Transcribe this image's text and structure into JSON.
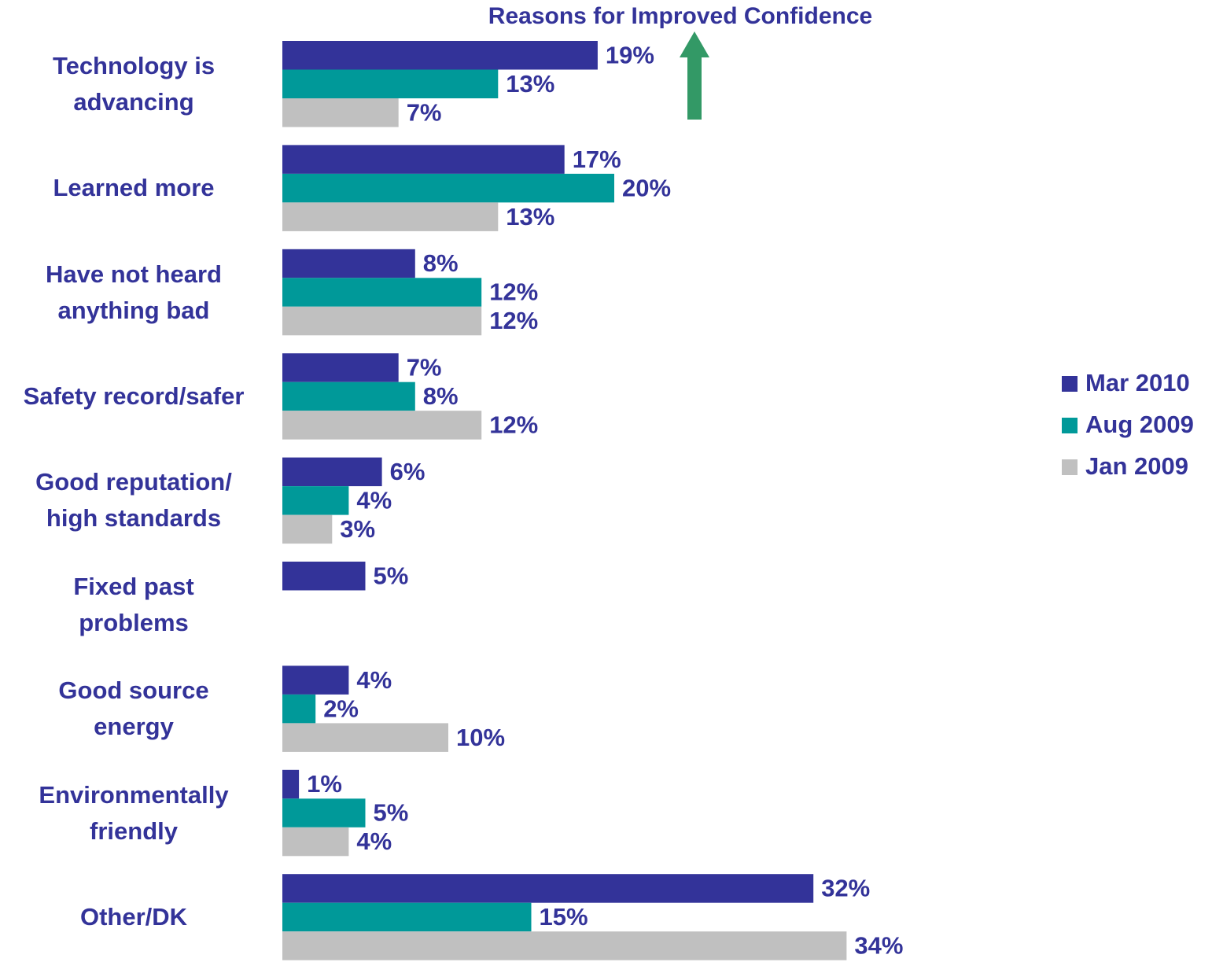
{
  "chart_data": {
    "type": "bar",
    "orientation": "horizontal",
    "title": "Reasons for Improved Confidence",
    "categories": [
      "Technology is\nadvancing",
      "Learned more",
      "Have not heard\nanything bad",
      "Safety record/safer",
      "Good reputation/\nhigh standards",
      "Fixed past\nproblems",
      "Good source\nenergy",
      "Environmentally\nfriendly",
      "Other/DK"
    ],
    "series": [
      {
        "name": "Mar 2010",
        "color": "#333399",
        "values": [
          19,
          17,
          8,
          7,
          6,
          5,
          4,
          1,
          32
        ],
        "value_labels": [
          "19%",
          "17%",
          "8%",
          "7%",
          "6%",
          "5%",
          "4%",
          "1%",
          "32%"
        ]
      },
      {
        "name": "Aug 2009",
        "color": "#009999",
        "values": [
          13,
          20,
          12,
          8,
          4,
          null,
          2,
          5,
          15
        ],
        "value_labels": [
          "13%",
          "20%",
          "12%",
          "8%",
          "4%",
          null,
          "2%",
          "5%",
          "15%"
        ]
      },
      {
        "name": "Jan 2009",
        "color": "#c0c0c0",
        "values": [
          7,
          13,
          12,
          12,
          3,
          null,
          10,
          4,
          34
        ],
        "value_labels": [
          "7%",
          "13%",
          "12%",
          "12%",
          "3%",
          null,
          "10%",
          "4%",
          "34%"
        ]
      }
    ],
    "legend": "right"
  }
}
